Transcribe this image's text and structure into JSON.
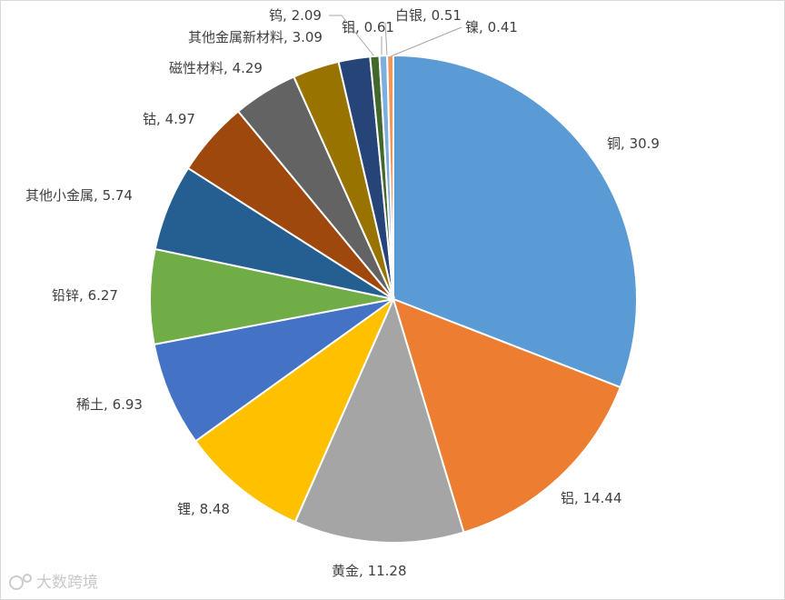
{
  "chart_data": {
    "type": "pie",
    "categories": [
      "铜",
      "铝",
      "黄金",
      "锂",
      "稀土",
      "铅锌",
      "其他小金属",
      "钴",
      "磁性材料",
      "其他金属新材料",
      "钨",
      "钼",
      "白银",
      "镍"
    ],
    "values": [
      30.9,
      14.44,
      11.28,
      8.48,
      6.93,
      6.27,
      5.74,
      4.97,
      4.29,
      3.09,
      2.09,
      0.61,
      0.51,
      0.41
    ],
    "colors": [
      "#5b9bd5",
      "#ed7d31",
      "#a5a5a5",
      "#ffc000",
      "#4472c4",
      "#70ad47",
      "#255e91",
      "#9e480e",
      "#636363",
      "#997300",
      "#264478",
      "#43682b",
      "#7cafdd",
      "#f1975a"
    ],
    "watermark": "大数跨境"
  }
}
